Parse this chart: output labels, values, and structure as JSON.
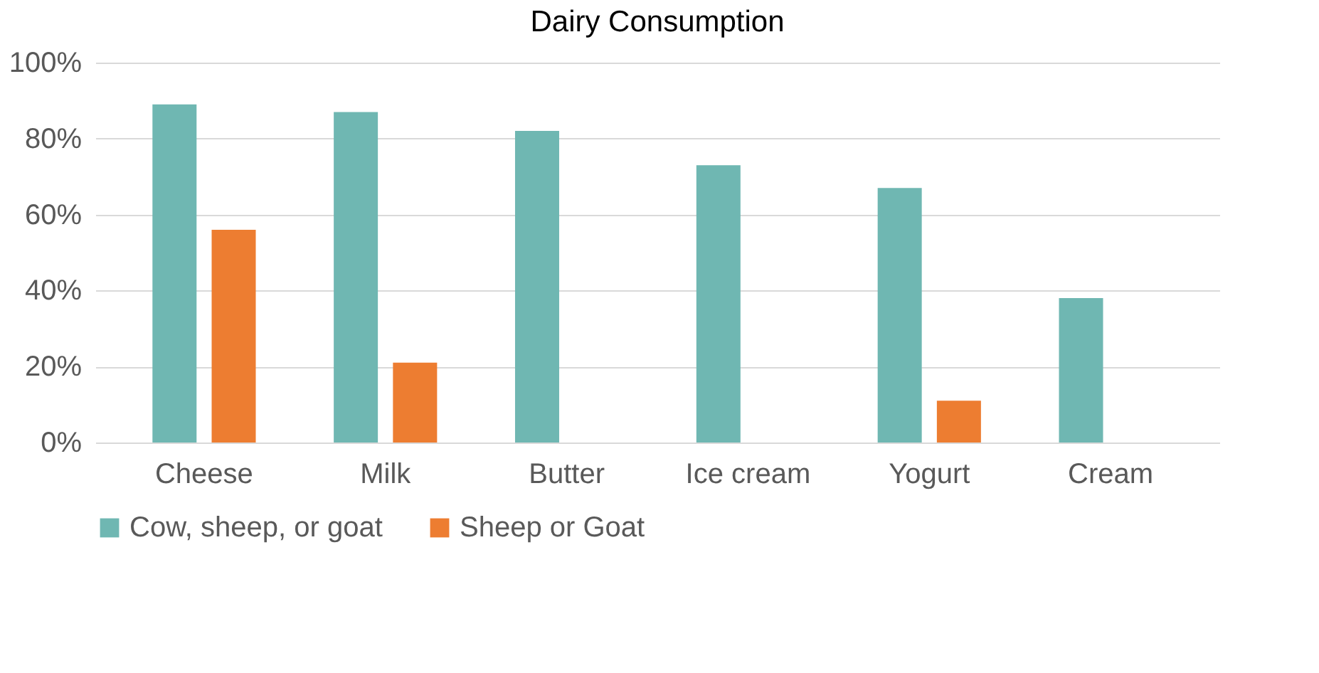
{
  "chart_data": {
    "type": "bar",
    "title": "Dairy Consumption",
    "categories": [
      "Cheese",
      "Milk",
      "Butter",
      "Ice cream",
      "Yogurt",
      "Cream"
    ],
    "series": [
      {
        "name": "Cow, sheep, or goat",
        "color": "#6fb7b2",
        "values": [
          89,
          87,
          82,
          73,
          67,
          38
        ]
      },
      {
        "name": "Sheep or Goat",
        "color": "#ed7d31",
        "values": [
          56,
          21,
          null,
          null,
          11,
          null
        ]
      }
    ],
    "ylim": [
      0,
      100
    ],
    "yticks": [
      {
        "value": 0,
        "label": "0%"
      },
      {
        "value": 20,
        "label": "20%"
      },
      {
        "value": 40,
        "label": "40%"
      },
      {
        "value": 60,
        "label": "60%"
      },
      {
        "value": 80,
        "label": "80%"
      },
      {
        "value": 100,
        "label": "100%"
      }
    ],
    "grid": "y",
    "legend": "bottom"
  }
}
